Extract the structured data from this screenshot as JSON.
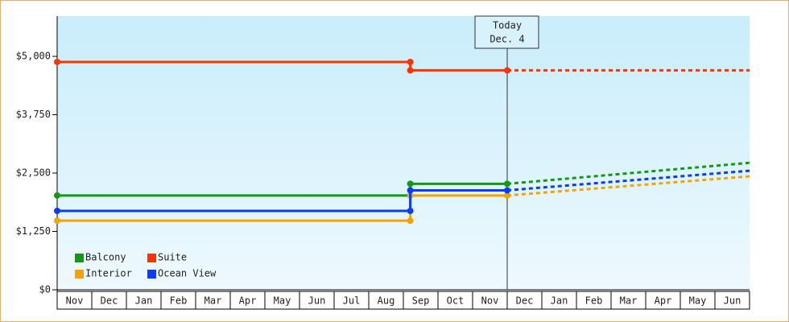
{
  "chart_data": {
    "type": "line",
    "categories": [
      "Nov",
      "Dec",
      "Jan",
      "Feb",
      "Mar",
      "Apr",
      "May",
      "Jun",
      "Jul",
      "Aug",
      "Sep",
      "Oct",
      "Nov",
      "Dec",
      "Jan",
      "Feb",
      "Mar",
      "Apr",
      "May",
      "Jun"
    ],
    "xlim": [
      0,
      20
    ],
    "ylim": [
      0,
      5862
    ],
    "yticks": [
      {
        "value": 0,
        "label": "$0"
      },
      {
        "value": 1250,
        "label": "$1,250"
      },
      {
        "value": 2500,
        "label": "$2,500"
      },
      {
        "value": 3750,
        "label": "$3,750"
      },
      {
        "value": 5000,
        "label": "$5,000"
      }
    ],
    "annotation": {
      "x": 13,
      "lines": [
        "Today",
        "Dec. 4"
      ]
    },
    "series": [
      {
        "name": "Balcony",
        "color": "#139a13",
        "x": [
          0,
          10.2,
          10.2,
          13
        ],
        "values": [
          2020,
          2020,
          2270,
          2270
        ],
        "forecast_x": [
          13,
          20
        ],
        "forecast_values": [
          2270,
          2720
        ]
      },
      {
        "name": "Suite",
        "color": "#ff3300",
        "x": [
          0,
          10.2,
          10.2,
          13
        ],
        "values": [
          4880,
          4880,
          4700,
          4700
        ],
        "forecast_x": [
          13,
          20
        ],
        "forecast_values": [
          4700,
          4700
        ]
      },
      {
        "name": "Interior",
        "color": "#f5a300",
        "x": [
          0,
          10.2,
          10.2,
          13
        ],
        "values": [
          1480,
          1480,
          2020,
          2020
        ],
        "forecast_x": [
          13,
          20
        ],
        "forecast_values": [
          2020,
          2430
        ]
      },
      {
        "name": "Ocean View",
        "color": "#0a3cff",
        "x": [
          0,
          10.2,
          10.2,
          13
        ],
        "values": [
          1690,
          1690,
          2130,
          2130
        ],
        "forecast_x": [
          13,
          20
        ],
        "forecast_values": [
          2130,
          2550
        ]
      }
    ]
  }
}
